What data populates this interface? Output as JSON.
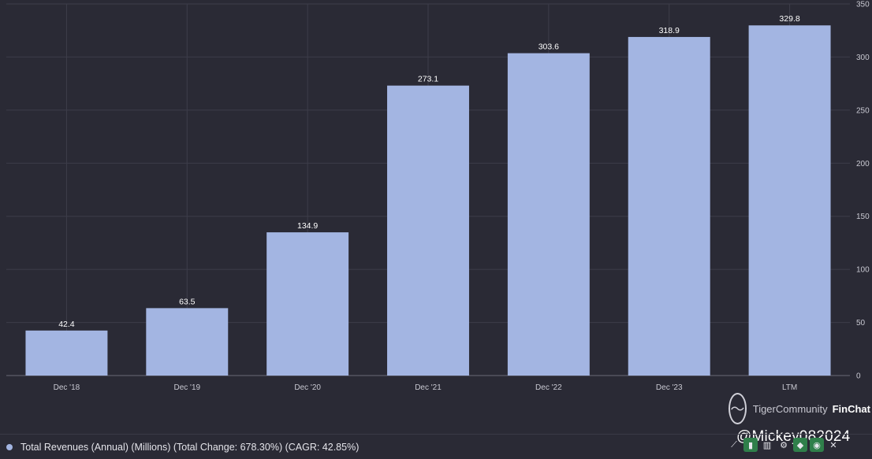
{
  "chart_data": {
    "type": "bar",
    "categories": [
      "Dec '18",
      "Dec '19",
      "Dec '20",
      "Dec '21",
      "Dec '22",
      "Dec '23",
      "LTM"
    ],
    "values": [
      42.4,
      63.5,
      134.9,
      273.1,
      303.6,
      318.9,
      329.8
    ],
    "data_labels": [
      "42.4",
      "63.5",
      "134.9",
      "273.1",
      "303.6",
      "318.9",
      "329.8"
    ],
    "yticks": [
      0,
      50,
      100,
      150,
      200,
      250,
      300,
      350
    ],
    "ylim": [
      0,
      350
    ],
    "grid": true,
    "y_axis_side": "right",
    "bar_color": "#a3b5e2"
  },
  "legend": {
    "label": "Total Revenues (Annual) (Millions) (Total Change: 678.30%) (CAGR: 42.85%)"
  },
  "watermark": {
    "community": "TigerCommunity",
    "brand": "FinChat",
    "handle": "@Mickey082024"
  },
  "toolbar": {
    "icons": [
      "line-chart-icon",
      "bar-chart-icon",
      "column-chart-icon",
      "settings-icon",
      "tag-icon",
      "eye-icon",
      "close-icon"
    ]
  },
  "colors": {
    "background": "#2a2a35",
    "bar": "#a3b5e2",
    "grid": "#3d3d4a",
    "toolbar_green": "#2f7f4a"
  }
}
